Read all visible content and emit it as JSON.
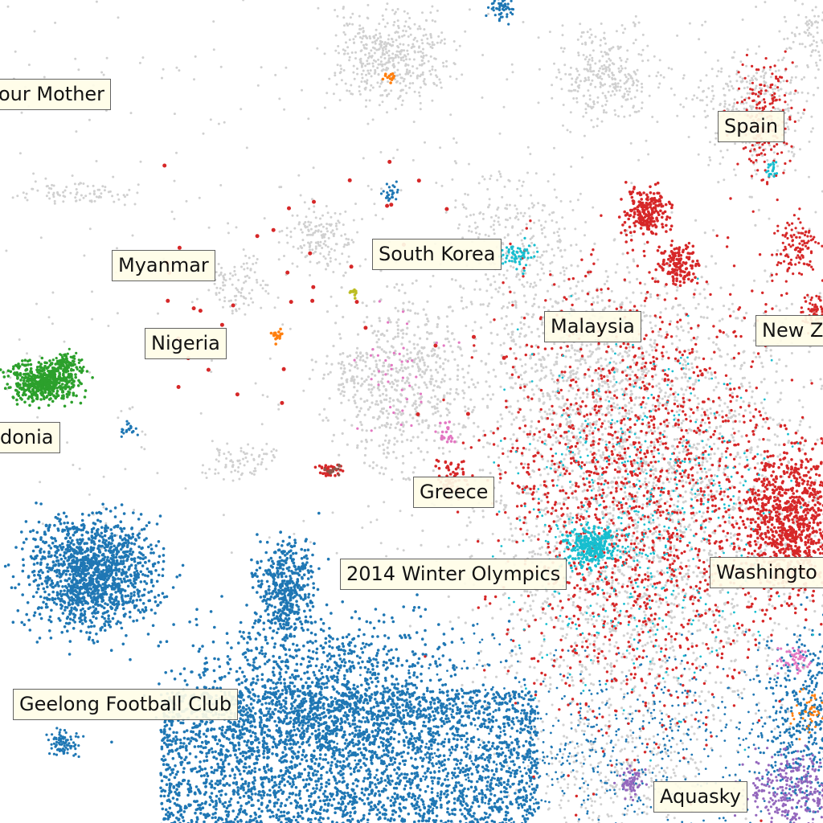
{
  "chart_data": {
    "type": "scatter",
    "title": "",
    "xlabel": "",
    "ylabel": "",
    "grid": false,
    "legend": "none",
    "colors": {
      "background_points": "#d0d0d0",
      "blue": "#1f77b4",
      "red": "#d62728",
      "cyan": "#17becf",
      "green": "#2ca02c",
      "orange": "#ff7f0e",
      "pink": "#e377c2",
      "purple": "#9467bd",
      "olive": "#bcbd22",
      "brown": "#8c564b"
    },
    "annotations": [
      {
        "id": "your-mother",
        "text": "our Mother"
      },
      {
        "id": "spain",
        "text": "Spain"
      },
      {
        "id": "south-korea",
        "text": "South Korea"
      },
      {
        "id": "myanmar",
        "text": "Myanmar"
      },
      {
        "id": "malaysia",
        "text": "Malaysia"
      },
      {
        "id": "new-zealand",
        "text": "New Z"
      },
      {
        "id": "nigeria",
        "text": "Nigeria"
      },
      {
        "id": "macedonia",
        "text": "donia"
      },
      {
        "id": "greece",
        "text": "Greece"
      },
      {
        "id": "winter-olympics",
        "text": "2014 Winter Olympics"
      },
      {
        "id": "washington",
        "text": "Washingto"
      },
      {
        "id": "geelong",
        "text": "Geelong Football Club"
      },
      {
        "id": "aquasky",
        "text": "Aquasky"
      }
    ]
  }
}
